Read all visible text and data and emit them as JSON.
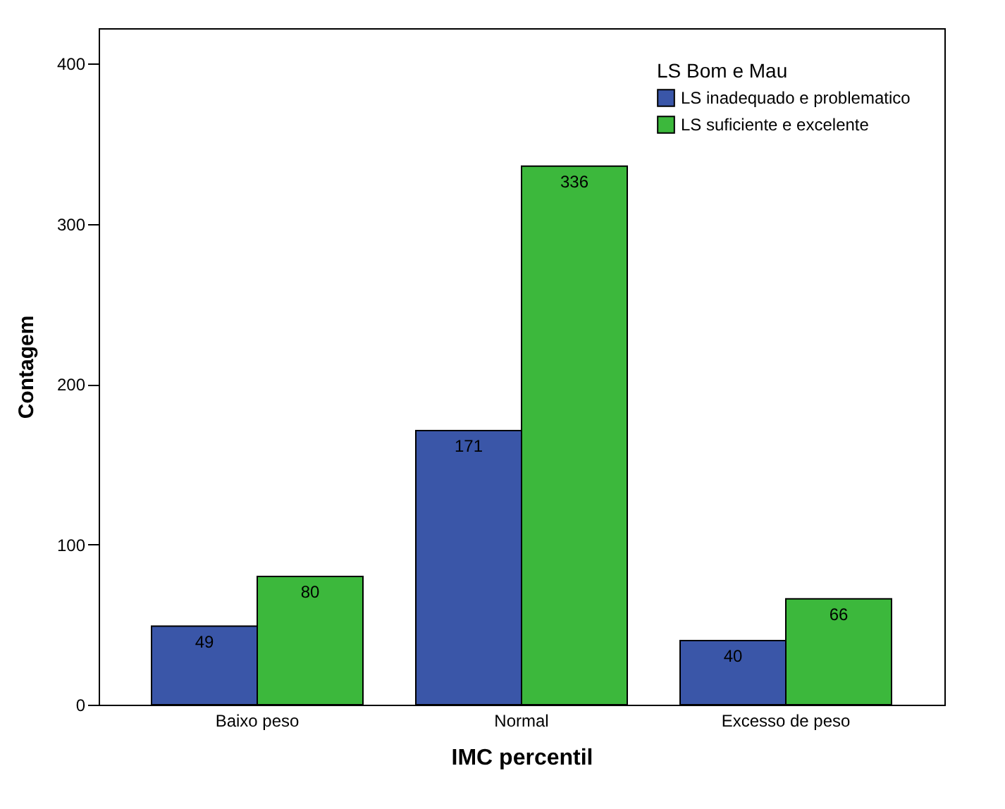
{
  "chart_data": {
    "type": "bar",
    "xlabel": "IMC percentil",
    "ylabel": "Contagem",
    "legend_title": "LS Bom e Mau",
    "categories": [
      "Baixo peso",
      "Normal",
      "Excesso de peso"
    ],
    "series": [
      {
        "name": "LS inadequado e problematico",
        "color": "#3a56a8",
        "values": [
          49,
          171,
          40
        ]
      },
      {
        "name": "LS suficiente e excelente",
        "color": "#3cb83c",
        "values": [
          80,
          336,
          66
        ]
      }
    ],
    "ylim": [
      0,
      422
    ],
    "yticks": [
      0,
      100,
      200,
      300,
      400
    ],
    "grid": false,
    "legend": "top right",
    "data_labels": true
  }
}
